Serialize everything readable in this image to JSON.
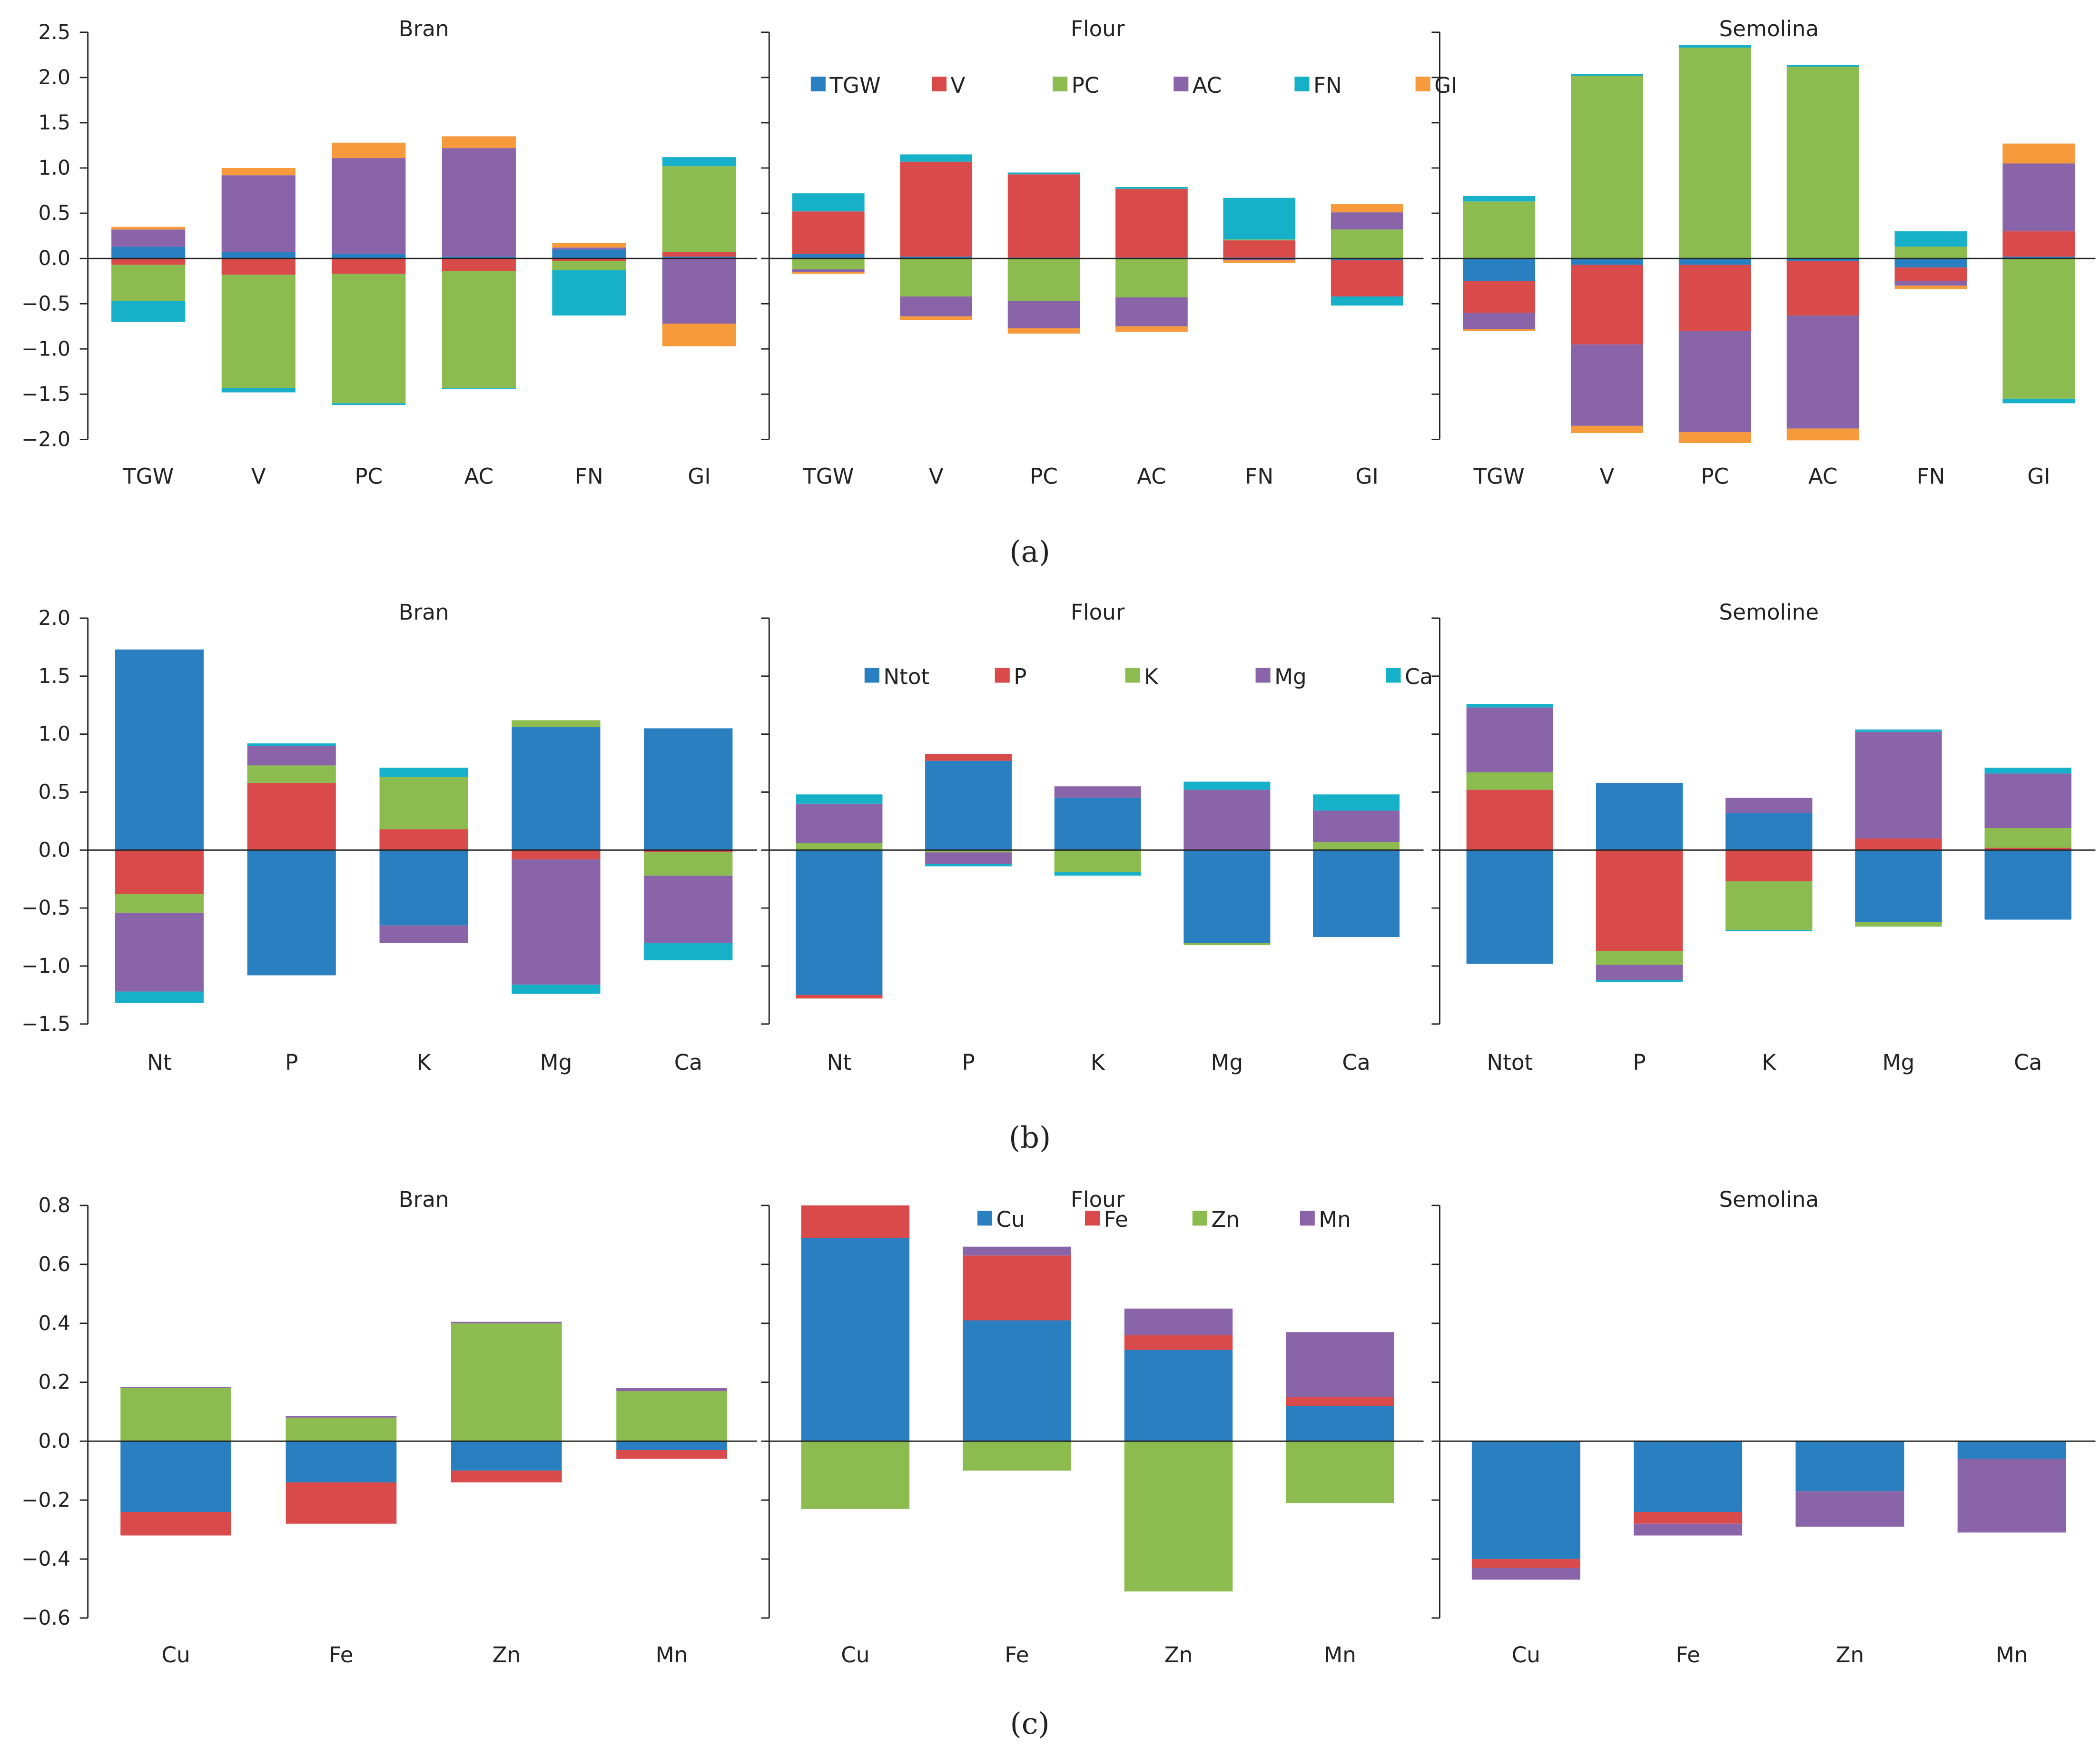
{
  "colors": {
    "TGW": "#2a7fc0",
    "V": "#d94b4b",
    "PC": "#8cbb4f",
    "AC": "#8a64a8",
    "FN": "#17b0c9",
    "GI": "#f79a3c",
    "Ntot": "#2a7fc0",
    "P": "#d94b4b",
    "K": "#8cbb4f",
    "Mg": "#8a64a8",
    "Ca": "#17b0c9",
    "Cu": "#2a7fc0",
    "Fe": "#d94b4b",
    "Zn": "#8cbb4f",
    "Mn": "#8a64a8"
  },
  "captions": [
    "(a)",
    "(b)",
    "(c)"
  ],
  "legends": [
    [
      "TGW",
      "V",
      "PC",
      "AC",
      "FN",
      "GI"
    ],
    [
      "Ntot",
      "P",
      "K",
      "Mg",
      "Ca"
    ],
    [
      "Cu",
      "Fe",
      "Zn",
      "Mn"
    ]
  ],
  "chart_data": [
    {
      "type": "bar",
      "stacked": true,
      "panel": "a",
      "title": "Bran",
      "categories": [
        "TGW",
        "V",
        "PC",
        "AC",
        "FN",
        "GI"
      ],
      "ylim": [
        -2.0,
        2.5
      ],
      "yticks": [
        "2.5",
        "2.0",
        "1.5",
        "1.0",
        "0.5",
        "0.0",
        "−0.5",
        "−1.0",
        "−1.5",
        "−2.0"
      ],
      "show_tick_labels": true,
      "series": [
        {
          "name": "TGW",
          "values": [
            0.13,
            0.07,
            0.05,
            0.02,
            0.1,
            0.02
          ]
        },
        {
          "name": "V",
          "values": [
            -0.07,
            -0.18,
            -0.17,
            -0.14,
            -0.03,
            0.05
          ]
        },
        {
          "name": "PC",
          "values": [
            -0.4,
            -1.25,
            -1.43,
            -1.29,
            -0.1,
            0.95
          ]
        },
        {
          "name": "AC",
          "values": [
            0.19,
            0.85,
            1.06,
            1.2,
            0.02,
            -0.72
          ]
        },
        {
          "name": "FN",
          "values": [
            -0.23,
            -0.05,
            -0.02,
            -0.01,
            -0.5,
            0.1
          ]
        },
        {
          "name": "GI",
          "values": [
            0.03,
            0.08,
            0.17,
            0.13,
            0.05,
            -0.25
          ]
        }
      ]
    },
    {
      "type": "bar",
      "stacked": true,
      "panel": "a",
      "title": "Flour",
      "categories": [
        "TGW",
        "V",
        "PC",
        "AC",
        "FN",
        "GI"
      ],
      "ylim": [
        -2.0,
        2.5
      ],
      "yticks": [
        "2.5",
        "2.0",
        "1.5",
        "1.0",
        "0.5",
        "0.0",
        "−0.5",
        "−1.0",
        "−1.5",
        "−2.0"
      ],
      "show_tick_labels": false,
      "series": [
        {
          "name": "TGW",
          "values": [
            0.05,
            0.02,
            0.01,
            0.01,
            0.01,
            -0.02
          ]
        },
        {
          "name": "V",
          "values": [
            0.47,
            1.05,
            0.92,
            0.76,
            0.19,
            -0.4
          ]
        },
        {
          "name": "PC",
          "values": [
            -0.12,
            -0.42,
            -0.47,
            -0.43,
            0.01,
            0.32
          ]
        },
        {
          "name": "AC",
          "values": [
            -0.03,
            -0.22,
            -0.3,
            -0.32,
            -0.02,
            0.19
          ]
        },
        {
          "name": "FN",
          "values": [
            0.2,
            0.08,
            0.02,
            0.02,
            0.46,
            -0.1
          ]
        },
        {
          "name": "GI",
          "values": [
            -0.02,
            -0.04,
            -0.06,
            -0.06,
            -0.03,
            0.09
          ]
        }
      ]
    },
    {
      "type": "bar",
      "stacked": true,
      "panel": "a",
      "title": "Semolina",
      "categories": [
        "TGW",
        "V",
        "PC",
        "AC",
        "FN",
        "GI"
      ],
      "ylim": [
        -2.0,
        2.5
      ],
      "yticks": [
        "2.5",
        "2.0",
        "1.5",
        "1.0",
        "0.5",
        "0.0",
        "−0.5",
        "−1.0",
        "−1.5",
        "−2.0"
      ],
      "show_tick_labels": false,
      "series": [
        {
          "name": "TGW",
          "values": [
            -0.25,
            -0.07,
            -0.07,
            -0.03,
            -0.1,
            0.02
          ]
        },
        {
          "name": "V",
          "values": [
            -0.35,
            -0.88,
            -0.73,
            -0.6,
            -0.15,
            0.28
          ]
        },
        {
          "name": "PC",
          "values": [
            0.63,
            2.02,
            2.33,
            2.12,
            0.13,
            -1.55
          ]
        },
        {
          "name": "AC",
          "values": [
            -0.18,
            -0.9,
            -1.12,
            -1.25,
            -0.05,
            0.75
          ]
        },
        {
          "name": "FN",
          "values": [
            0.06,
            0.02,
            0.03,
            0.02,
            0.17,
            -0.05
          ]
        },
        {
          "name": "GI",
          "values": [
            -0.02,
            -0.08,
            -0.12,
            -0.13,
            -0.04,
            0.22
          ]
        }
      ]
    },
    {
      "type": "bar",
      "stacked": true,
      "panel": "b",
      "title": "Bran",
      "categories": [
        "Nt",
        "P",
        "K",
        "Mg",
        "Ca"
      ],
      "ylim": [
        -1.5,
        2.0
      ],
      "yticks": [
        "2.0",
        "1.5",
        "1.0",
        "0.5",
        "0.0",
        "−0.5",
        "−1.0",
        "−1.5"
      ],
      "show_tick_labels": true,
      "series": [
        {
          "name": "Ntot",
          "values": [
            1.73,
            -1.08,
            -0.65,
            1.06,
            1.05
          ]
        },
        {
          "name": "P",
          "values": [
            -0.38,
            0.58,
            0.18,
            -0.08,
            -0.02
          ]
        },
        {
          "name": "K",
          "values": [
            -0.16,
            0.15,
            0.45,
            0.06,
            -0.2
          ]
        },
        {
          "name": "Mg",
          "values": [
            -0.68,
            0.17,
            -0.15,
            -1.08,
            -0.58
          ]
        },
        {
          "name": "Ca",
          "values": [
            -0.1,
            0.02,
            0.08,
            -0.08,
            -0.15
          ]
        }
      ]
    },
    {
      "type": "bar",
      "stacked": true,
      "panel": "b",
      "title": "Flour",
      "categories": [
        "Nt",
        "P",
        "K",
        "Mg",
        "Ca"
      ],
      "ylim": [
        -1.5,
        2.0
      ],
      "yticks": [
        "2.0",
        "1.5",
        "1.0",
        "0.5",
        "0.0",
        "−0.5",
        "−1.0",
        "−1.5"
      ],
      "show_tick_labels": false,
      "series": [
        {
          "name": "Ntot",
          "values": [
            -1.25,
            0.77,
            0.45,
            -0.8,
            -0.75
          ]
        },
        {
          "name": "P",
          "values": [
            -0.03,
            0.06,
            0.0,
            0.0,
            0.0
          ]
        },
        {
          "name": "K",
          "values": [
            0.06,
            -0.02,
            -0.19,
            -0.02,
            0.07
          ]
        },
        {
          "name": "Mg",
          "values": [
            0.34,
            -0.1,
            0.1,
            0.52,
            0.27
          ]
        },
        {
          "name": "Ca",
          "values": [
            0.08,
            -0.02,
            -0.03,
            0.07,
            0.14
          ]
        }
      ]
    },
    {
      "type": "bar",
      "stacked": true,
      "panel": "b",
      "title": "Semoline",
      "categories": [
        "Ntot",
        "P",
        "K",
        "Mg",
        "Ca"
      ],
      "ylim": [
        -1.5,
        2.0
      ],
      "yticks": [
        "2.0",
        "1.5",
        "1.0",
        "0.5",
        "0.0",
        "−0.5",
        "−1.0",
        "−1.5"
      ],
      "show_tick_labels": false,
      "series": [
        {
          "name": "Ntot",
          "values": [
            -0.98,
            0.58,
            0.32,
            -0.62,
            -0.6
          ]
        },
        {
          "name": "P",
          "values": [
            0.52,
            -0.87,
            -0.27,
            0.1,
            0.02
          ]
        },
        {
          "name": "K",
          "values": [
            0.15,
            -0.12,
            -0.42,
            -0.04,
            0.17
          ]
        },
        {
          "name": "Mg",
          "values": [
            0.56,
            -0.13,
            0.13,
            0.92,
            0.47
          ]
        },
        {
          "name": "Ca",
          "values": [
            0.03,
            -0.02,
            -0.01,
            0.02,
            0.05
          ]
        }
      ]
    },
    {
      "type": "bar",
      "stacked": true,
      "panel": "c",
      "title": "Bran",
      "categories": [
        "Cu",
        "Fe",
        "Zn",
        "Mn"
      ],
      "ylim": [
        -0.6,
        0.8
      ],
      "yticks": [
        "0.8",
        "0.6",
        "0.4",
        "0.2",
        "0.0",
        "−0.2",
        "−0.4",
        "−0.6"
      ],
      "show_tick_labels": true,
      "series": [
        {
          "name": "Cu",
          "values": [
            -0.24,
            -0.14,
            -0.1,
            -0.03
          ]
        },
        {
          "name": "Fe",
          "values": [
            -0.08,
            -0.14,
            -0.04,
            -0.03
          ]
        },
        {
          "name": "Zn",
          "values": [
            0.18,
            0.08,
            0.4,
            0.17
          ]
        },
        {
          "name": "Mn",
          "values": [
            0.003,
            0.005,
            0.005,
            0.01
          ]
        }
      ]
    },
    {
      "type": "bar",
      "stacked": true,
      "panel": "c",
      "title": "Flour",
      "categories": [
        "Cu",
        "Fe",
        "Zn",
        "Mn"
      ],
      "ylim": [
        -0.6,
        0.8
      ],
      "yticks": [
        "0.8",
        "0.6",
        "0.4",
        "0.2",
        "0.0",
        "−0.2",
        "−0.4",
        "−0.6"
      ],
      "show_tick_labels": false,
      "series": [
        {
          "name": "Cu",
          "values": [
            0.69,
            0.41,
            0.31,
            0.12
          ]
        },
        {
          "name": "Fe",
          "values": [
            0.11,
            0.22,
            0.05,
            0.03
          ]
        },
        {
          "name": "Zn",
          "values": [
            -0.23,
            -0.1,
            -0.51,
            -0.21
          ]
        },
        {
          "name": "Mn",
          "values": [
            0.0,
            0.03,
            0.09,
            0.22
          ]
        }
      ]
    },
    {
      "type": "bar",
      "stacked": true,
      "panel": "c",
      "title": "Semolina",
      "categories": [
        "Cu",
        "Fe",
        "Zn",
        "Mn"
      ],
      "ylim": [
        -0.6,
        0.8
      ],
      "yticks": [
        "0.8",
        "0.6",
        "0.4",
        "0.2",
        "0.0",
        "−0.2",
        "−0.4",
        "−0.6"
      ],
      "show_tick_labels": false,
      "series": [
        {
          "name": "Cu",
          "values": [
            -0.4,
            -0.24,
            -0.17,
            -0.06
          ]
        },
        {
          "name": "Fe",
          "values": [
            -0.03,
            -0.04,
            0.0,
            0.0
          ]
        },
        {
          "name": "Zn",
          "values": [
            0.0,
            0.0,
            0.0,
            0.0
          ]
        },
        {
          "name": "Mn",
          "values": [
            -0.04,
            -0.04,
            -0.12,
            -0.25
          ]
        }
      ]
    }
  ]
}
